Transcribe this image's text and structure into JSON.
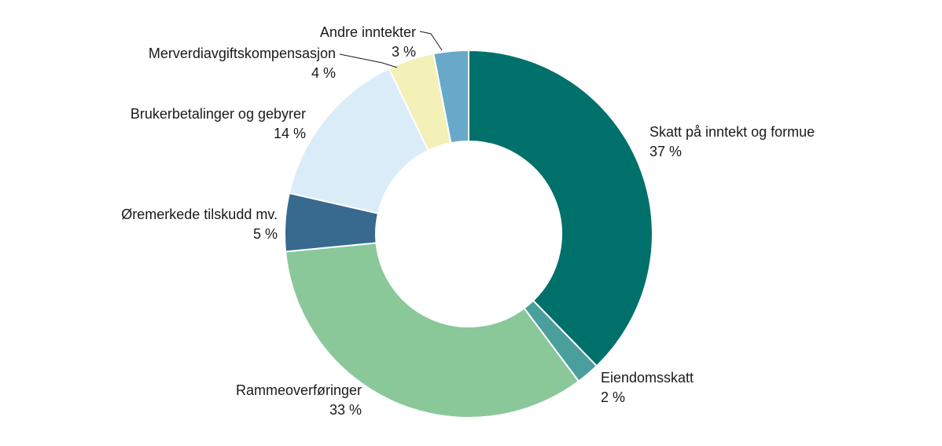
{
  "chart_data": {
    "type": "pie",
    "style": "donut",
    "title": "",
    "unit": "%",
    "slices": [
      {
        "label": "Skatt på inntekt og formue",
        "value": 37,
        "value_text": "37 %",
        "color": "#00706b"
      },
      {
        "label": "Eiendomsskatt",
        "value": 2,
        "value_text": "2 %",
        "color": "#4a9e9b"
      },
      {
        "label": "Rammeoverføringer",
        "value": 33,
        "value_text": "33 %",
        "color": "#8ac89a"
      },
      {
        "label": "Øremerkede tilskudd mv.",
        "value": 5,
        "value_text": "5 %",
        "color": "#38698f"
      },
      {
        "label": "Brukerbetalinger og gebyrer",
        "value": 14,
        "value_text": "14 %",
        "color": "#dbecf9"
      },
      {
        "label": "Merverdiavgiftskompensasjon",
        "value": 4,
        "value_text": "4 %",
        "color": "#f3f0b8"
      },
      {
        "label": "Andre inntekter",
        "value": 3,
        "value_text": "3 %",
        "color": "#68a9c9"
      }
    ],
    "legend": "none",
    "label_placement": "outside"
  }
}
